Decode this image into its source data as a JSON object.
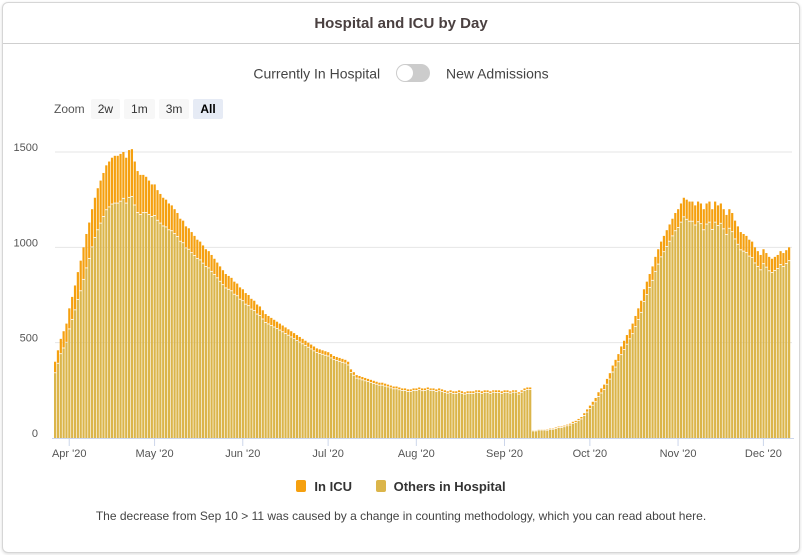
{
  "title": "Hospital and ICU by Day",
  "toggle": {
    "left_label": "Currently In Hospital",
    "right_label": "New Admissions",
    "state": "off"
  },
  "zoom": {
    "label": "Zoom",
    "buttons": [
      "2w",
      "1m",
      "3m",
      "All"
    ],
    "active": "All"
  },
  "note": {
    "text": "The decrease from Sep 10 > 11 was caused by a change in counting methodology, which you can read about ",
    "link": "here",
    "end": "."
  },
  "colors": {
    "icu": "#f5a00f",
    "others": "#dbb54a"
  },
  "chart_data": {
    "type": "bar",
    "stacked": true,
    "title": "Hospital and ICU by Day",
    "start_date": "2020-03-27",
    "end_date": "2020-12-10",
    "ylim": [
      0,
      1500
    ],
    "y_ticks": [
      0,
      500,
      1000,
      1500
    ],
    "y_tick_labels": [
      "0",
      "500",
      "1000",
      "1500"
    ],
    "x_ticks": [
      {
        "date": "2020-04-01",
        "label": "Apr '20"
      },
      {
        "date": "2020-05-01",
        "label": "May '20"
      },
      {
        "date": "2020-06-01",
        "label": "Jun '20"
      },
      {
        "date": "2020-07-01",
        "label": "Jul '20"
      },
      {
        "date": "2020-08-01",
        "label": "Aug '20"
      },
      {
        "date": "2020-09-01",
        "label": "Sep '20"
      },
      {
        "date": "2020-10-01",
        "label": "Oct '20"
      },
      {
        "date": "2020-11-01",
        "label": "Nov '20"
      },
      {
        "date": "2020-12-01",
        "label": "Dec '20"
      }
    ],
    "legend": [
      "In ICU",
      "Others in Hospital"
    ],
    "legend_position": "bottom",
    "grid": true,
    "total_in_hospital": [
      400,
      460,
      520,
      560,
      600,
      680,
      740,
      800,
      870,
      930,
      1000,
      1070,
      1130,
      1200,
      1260,
      1310,
      1350,
      1390,
      1430,
      1450,
      1470,
      1480,
      1480,
      1490,
      1500,
      1470,
      1510,
      1515,
      1450,
      1400,
      1380,
      1380,
      1370,
      1350,
      1330,
      1330,
      1300,
      1280,
      1260,
      1250,
      1230,
      1220,
      1200,
      1180,
      1150,
      1140,
      1110,
      1100,
      1080,
      1060,
      1040,
      1030,
      1010,
      990,
      980,
      960,
      940,
      920,
      900,
      880,
      860,
      850,
      840,
      820,
      810,
      790,
      780,
      760,
      750,
      730,
      720,
      700,
      690,
      670,
      650,
      640,
      630,
      620,
      610,
      600,
      590,
      580,
      570,
      560,
      550,
      540,
      530,
      520,
      510,
      500,
      490,
      480,
      470,
      465,
      460,
      455,
      450,
      440,
      430,
      425,
      420,
      415,
      410,
      400,
      360,
      345,
      330,
      325,
      320,
      315,
      310,
      305,
      300,
      295,
      290,
      290,
      285,
      280,
      275,
      270,
      270,
      265,
      260,
      260,
      255,
      255,
      260,
      260,
      265,
      260,
      260,
      265,
      260,
      260,
      255,
      260,
      255,
      250,
      245,
      250,
      245,
      245,
      250,
      245,
      240,
      245,
      245,
      245,
      250,
      250,
      245,
      250,
      250,
      245,
      250,
      250,
      250,
      245,
      250,
      250,
      245,
      250,
      250,
      240,
      250,
      260,
      265,
      265,
      40,
      40,
      45,
      45,
      45,
      45,
      50,
      50,
      55,
      60,
      60,
      65,
      70,
      75,
      85,
      90,
      100,
      110,
      130,
      150,
      170,
      190,
      210,
      240,
      260,
      280,
      310,
      340,
      380,
      410,
      440,
      480,
      510,
      540,
      570,
      600,
      640,
      680,
      720,
      780,
      820,
      860,
      900,
      950,
      990,
      1030,
      1060,
      1090,
      1120,
      1150,
      1180,
      1200,
      1230,
      1260,
      1250,
      1240,
      1240,
      1220,
      1240,
      1230,
      1200,
      1230,
      1240,
      1200,
      1240,
      1220,
      1230,
      1200,
      1170,
      1200,
      1180,
      1140,
      1110,
      1080,
      1070,
      1060,
      1040,
      1030,
      1000,
      980,
      960,
      990,
      970,
      950,
      940,
      950,
      960,
      980,
      970,
      985,
      1000
    ],
    "in_icu": [
      60,
      70,
      80,
      90,
      100,
      110,
      120,
      130,
      145,
      160,
      170,
      180,
      190,
      200,
      210,
      220,
      225,
      230,
      235,
      240,
      245,
      250,
      250,
      250,
      245,
      240,
      250,
      250,
      230,
      220,
      210,
      200,
      190,
      180,
      170,
      165,
      160,
      155,
      150,
      145,
      140,
      135,
      130,
      125,
      120,
      118,
      115,
      112,
      110,
      105,
      100,
      98,
      95,
      92,
      90,
      88,
      85,
      82,
      80,
      78,
      75,
      72,
      70,
      68,
      66,
      64,
      62,
      60,
      58,
      56,
      54,
      52,
      50,
      48,
      46,
      44,
      42,
      40,
      38,
      36,
      35,
      34,
      33,
      32,
      31,
      30,
      29,
      28,
      27,
      26,
      25,
      25,
      24,
      24,
      23,
      23,
      22,
      22,
      21,
      21,
      20,
      20,
      19,
      19,
      18,
      18,
      18,
      17,
      17,
      17,
      16,
      16,
      16,
      15,
      15,
      15,
      15,
      14,
      14,
      14,
      14,
      14,
      13,
      13,
      13,
      13,
      13,
      13,
      13,
      14,
      13,
      13,
      12,
      13,
      13,
      14,
      13,
      13,
      12,
      13,
      13,
      13,
      14,
      13,
      12,
      13,
      13,
      13,
      12,
      13,
      13,
      14,
      13,
      13,
      12,
      13,
      13,
      13,
      13,
      13,
      12,
      12,
      12,
      12,
      12,
      13,
      13,
      13,
      5,
      5,
      5,
      5,
      5,
      6,
      6,
      6,
      7,
      7,
      7,
      8,
      8,
      9,
      10,
      10,
      11,
      12,
      14,
      16,
      18,
      20,
      22,
      24,
      26,
      28,
      30,
      33,
      36,
      40,
      42,
      45,
      48,
      50,
      52,
      55,
      58,
      60,
      63,
      66,
      70,
      72,
      75,
      78,
      80,
      82,
      85,
      88,
      90,
      92,
      95,
      98,
      100,
      102,
      105,
      105,
      105,
      105,
      108,
      108,
      110,
      110,
      110,
      108,
      110,
      108,
      106,
      105,
      104,
      102,
      100,
      98,
      96,
      95,
      92,
      90,
      88,
      86,
      84,
      82,
      80,
      78,
      76,
      75,
      74,
      74,
      73,
      72,
      72,
      72,
      72
    ]
  }
}
